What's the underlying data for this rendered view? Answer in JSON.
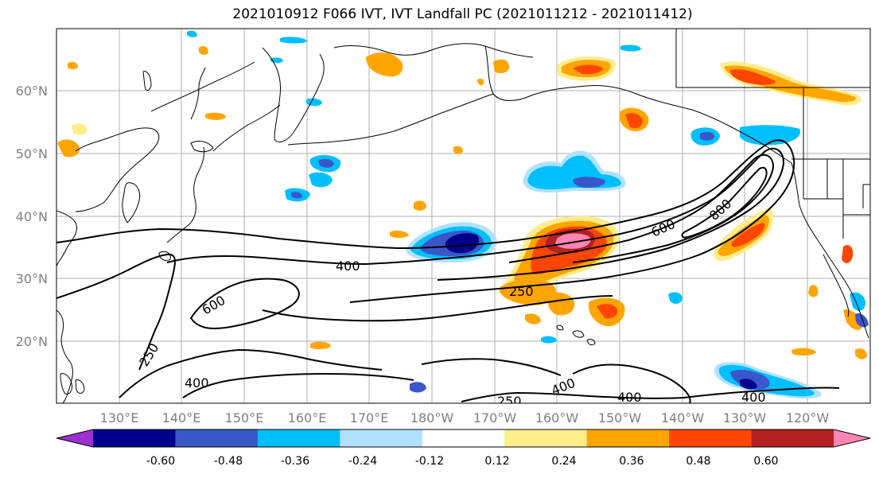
{
  "title": "2021010912 F066 IVT, IVT Landfall PC (2021011212 - 2021011412)",
  "lat_labels": [
    "60°N",
    "50°N",
    "40°N",
    "30°N",
    "20°N"
  ],
  "lon_labels": [
    "130°E",
    "140°E",
    "150°E",
    "160°E",
    "170°E",
    "180°W",
    "170°W",
    "160°W",
    "150°W",
    "140°W",
    "130°W",
    "120°W"
  ],
  "colorbar": {
    "colors": [
      "#9b30d0",
      "#00008b",
      "#3a57c9",
      "#00bfff",
      "#b0e2ff",
      "#ffffff",
      "#ffec8b",
      "#ffa500",
      "#ff4500",
      "#b22222",
      "#ff86b4"
    ],
    "tick_labels": [
      "-0.60",
      "-0.48",
      "-0.36",
      "-0.24",
      "-0.12",
      "0.12",
      "0.24",
      "0.36",
      "0.48",
      "0.60"
    ]
  },
  "contour_labels": [
    "400",
    "250",
    "600",
    "600",
    "800",
    "250",
    "400",
    "400",
    "250",
    "400",
    "400"
  ],
  "palette": {
    "positive_light": "#ffec8b",
    "positive_mid": "#ffa500",
    "positive_strong": "#ff4500",
    "positive_max": "#ff86b4",
    "negative_light": "#b0e2ff",
    "negative_mid": "#00bfff",
    "negative_strong": "#3a57c9",
    "negative_max": "#00008b"
  }
}
